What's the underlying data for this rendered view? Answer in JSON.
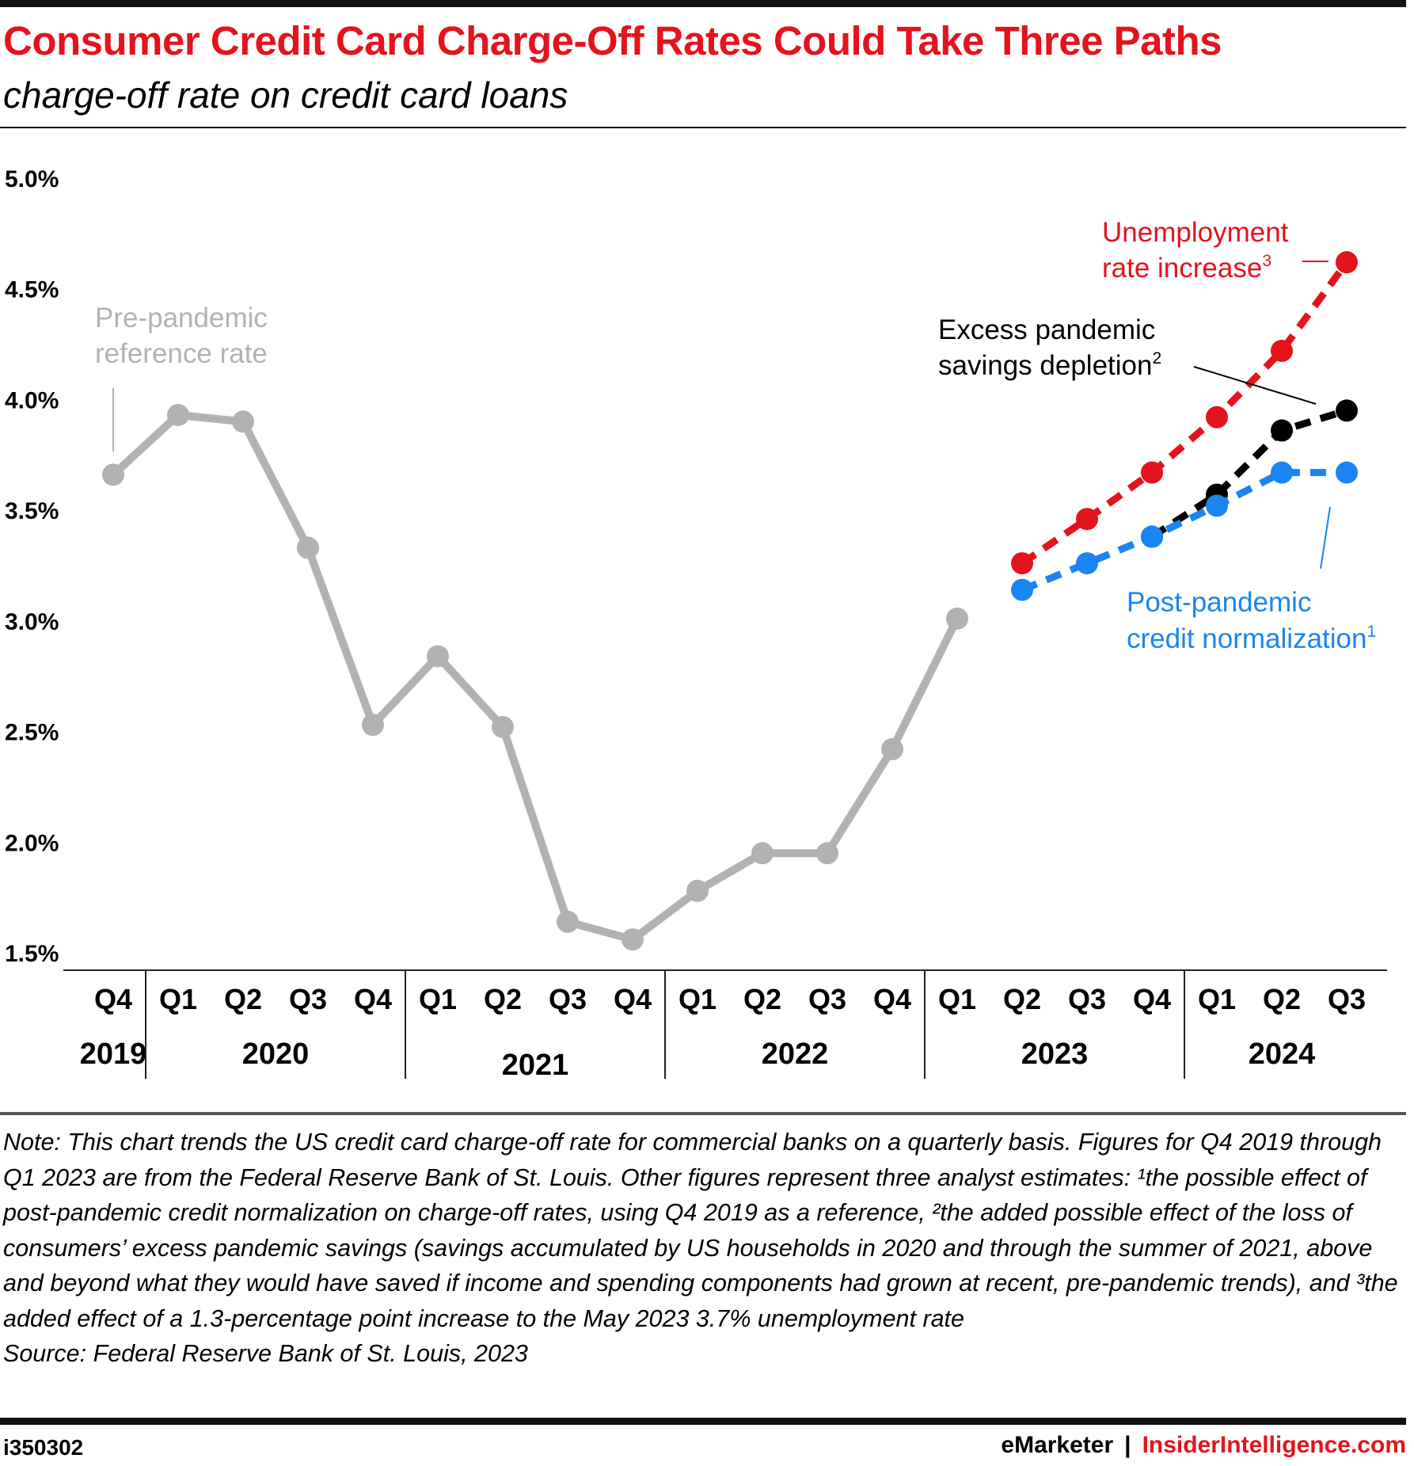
{
  "header": {
    "title": "Consumer Credit Card Charge-Off Rates Could Take Three Paths",
    "subtitle": "charge-off rate on credit card loans"
  },
  "chart_data": {
    "type": "line",
    "ylim": [
      1.5,
      5.0
    ],
    "yticks": [
      "5.0%",
      "4.5%",
      "4.0%",
      "3.5%",
      "3.0%",
      "2.5%",
      "2.0%",
      "1.5%"
    ],
    "ytick_values": [
      5.0,
      4.5,
      4.0,
      3.5,
      3.0,
      2.5,
      2.0,
      1.5
    ],
    "quarters": [
      "Q4",
      "Q1",
      "Q2",
      "Q3",
      "Q4",
      "Q1",
      "Q2",
      "Q3",
      "Q4",
      "Q1",
      "Q2",
      "Q3",
      "Q4",
      "Q1",
      "Q2",
      "Q3",
      "Q4",
      "Q1",
      "Q2",
      "Q3"
    ],
    "years": [
      {
        "label": "2019",
        "from": 0,
        "to": 0
      },
      {
        "label": "2020",
        "from": 1,
        "to": 4
      },
      {
        "label": "2021",
        "from": 5,
        "to": 8
      },
      {
        "label": "2022",
        "from": 9,
        "to": 12
      },
      {
        "label": "2023",
        "from": 13,
        "to": 16
      },
      {
        "label": "2024",
        "from": 17,
        "to": 19
      }
    ],
    "grid": false,
    "legend": "inline-labels",
    "series": [
      {
        "name": "historical",
        "color": "#b2b2b2",
        "dashed": false,
        "start_index": 0,
        "values": [
          3.66,
          3.93,
          3.9,
          3.33,
          2.53,
          2.84,
          2.52,
          1.64,
          1.56,
          1.78,
          1.95,
          1.95,
          2.42,
          3.01
        ]
      },
      {
        "name": "Unemployment rate increase",
        "color": "#e4131c",
        "dashed": true,
        "start_index": 14,
        "values": [
          3.26,
          3.46,
          3.67,
          3.92,
          4.22,
          4.62
        ]
      },
      {
        "name": "Excess pandemic savings depletion",
        "color": "#000000",
        "dashed": true,
        "start_index": 16,
        "values": [
          3.38,
          3.57,
          3.86,
          3.95
        ]
      },
      {
        "name": "Post-pandemic credit normalization",
        "color": "#1a85f0",
        "dashed": true,
        "start_index": 14,
        "values": [
          3.14,
          3.26,
          3.38,
          3.52,
          3.67,
          3.67
        ]
      }
    ],
    "annotations": {
      "pre_pandemic": {
        "line1": "Pre-pandemic",
        "line2": "reference rate",
        "color": "#b2b2b2"
      },
      "unemployment": {
        "line1": "Unemployment",
        "line2": "rate increase",
        "sup": "3",
        "color": "#e4131c"
      },
      "savings": {
        "line1": "Excess pandemic",
        "line2": "savings depletion",
        "sup": "2",
        "color": "#000000"
      },
      "normalization": {
        "line1": "Post-pandemic",
        "line2": "credit normalization",
        "sup": "1",
        "color": "#1a85f0"
      }
    }
  },
  "note": {
    "text": "Note: This chart trends the US credit card charge-off rate for commercial banks on a quarterly basis. Figures for Q4 2019 through Q1 2023 are from the Federal Reserve Bank of St. Louis. Other figures represent three analyst estimates: ¹the possible effect of post-pandemic credit normalization on charge-off rates, using Q4 2019 as a reference, ²the added possible effect of the loss of consumers’ excess pandemic savings (savings accumulated by US households in 2020 and through the summer of 2021, above and beyond what they would have saved if income and spending components had grown at recent, pre-pandemic trends), and ³the added effect of a 1.3-percentage point increase to the May 2023 3.7% unemployment rate",
    "source": "Source: Federal Reserve Bank of St. Louis, 2023"
  },
  "footer": {
    "id": "i350302",
    "brand1": "eMarketer",
    "separator": "|",
    "brand2": "InsiderIntelligence.com"
  }
}
